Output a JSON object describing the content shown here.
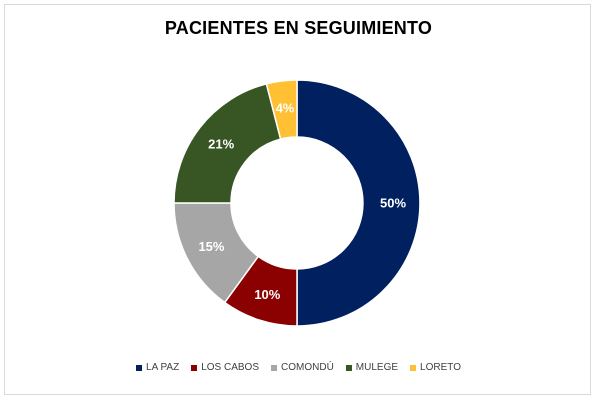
{
  "chart_data": {
    "type": "pie",
    "title": "PACIENTES EN SEGUIMIENTO",
    "categories": [
      "LA PAZ",
      "LOS CABOS",
      "COMONDÚ",
      "MULEGE",
      "LORETO"
    ],
    "values": [
      50,
      10,
      15,
      21,
      4
    ],
    "labels": [
      "50%",
      "10%",
      "15%",
      "21%",
      "4%"
    ],
    "colors": [
      "#002060",
      "#8B0000",
      "#A6A6A6",
      "#375623",
      "#FFC033"
    ],
    "legend_position": "bottom",
    "style": "donut"
  }
}
